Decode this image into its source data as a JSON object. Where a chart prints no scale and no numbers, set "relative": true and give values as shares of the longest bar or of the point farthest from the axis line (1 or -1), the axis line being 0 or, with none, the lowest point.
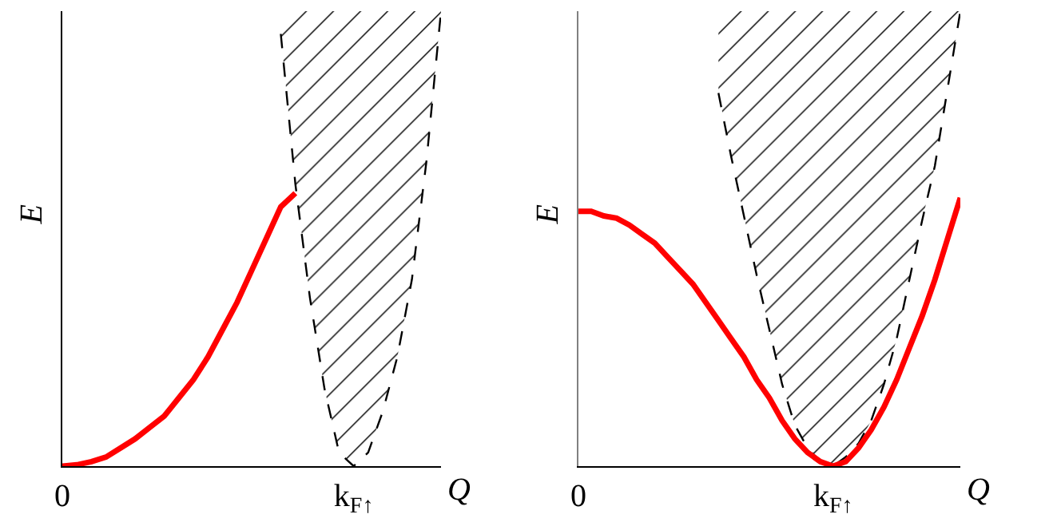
{
  "chart_data": [
    {
      "type": "line",
      "xlabel": "Q",
      "ylabel": "E",
      "relative": true,
      "grid": false,
      "marker": "none",
      "categories": [
        "0",
        null,
        null,
        null,
        null,
        null,
        null,
        null,
        null,
        null,
        null,
        null,
        null,
        null,
        null,
        null,
        null,
        null,
        null,
        null,
        "k$_{F↑}$",
        null,
        null,
        null,
        null,
        null,
        null
      ],
      "series": [
        {
          "type": "line",
          "color": "#000000",
          "line_style": "dashed",
          "values": [
            null,
            null,
            null,
            null,
            null,
            null,
            null,
            null,
            null,
            null,
            null,
            null,
            null,
            null,
            null,
            0.95,
            0.62,
            0.37,
            0.17,
            0.03,
            0,
            0.03,
            0.12,
            0.24,
            0.41,
            0.67,
            1
          ],
          "lower": [
            null,
            null,
            null,
            null,
            null,
            null,
            null,
            null,
            null,
            null,
            null,
            null,
            null,
            null,
            null,
            0.95,
            0.62,
            0.37,
            0.17,
            0.03,
            0,
            0.03,
            0.12,
            0.24,
            0.41,
            0.67,
            1
          ],
          "upper": [
            null,
            null,
            null,
            null,
            null,
            null,
            null,
            null,
            null,
            null,
            null,
            null,
            null,
            null,
            null,
            1,
            1,
            1,
            1,
            1,
            1,
            1,
            1,
            1,
            1,
            1,
            1
          ]
        },
        {
          "type": "line",
          "color": "#ff0000",
          "line_style": "solid",
          "values": [
            0,
            0.003,
            0.01,
            0.02,
            0.04,
            0.06,
            0.085,
            0.11,
            0.15,
            0.19,
            0.24,
            0.3,
            0.36,
            0.43,
            0.5,
            0.57,
            0.6,
            null,
            null,
            null,
            null,
            null,
            null,
            null,
            null,
            null,
            null
          ]
        }
      ]
    },
    {
      "type": "line",
      "xlabel": "Q",
      "ylabel": "E",
      "relative": true,
      "grid": false,
      "marker": "none",
      "categories": [
        "0",
        null,
        null,
        null,
        null,
        null,
        null,
        null,
        null,
        null,
        null,
        null,
        null,
        null,
        null,
        null,
        null,
        null,
        null,
        null,
        "k$_{F↑}$",
        null,
        null,
        null,
        null,
        null,
        null,
        null,
        null,
        null,
        null
      ],
      "series": [
        {
          "type": "line",
          "color": "#000000",
          "line_style": "dashed",
          "values": [
            null,
            null,
            null,
            null,
            null,
            null,
            null,
            null,
            null,
            null,
            null,
            0.82,
            0.68,
            0.55,
            0.42,
            0.3,
            0.18,
            0.09,
            0.04,
            0.01,
            0,
            0.02,
            0.05,
            0.1,
            0.18,
            0.28,
            0.41,
            0.54,
            0.66,
            0.83,
            1
          ],
          "lower": [
            null,
            null,
            null,
            null,
            null,
            null,
            null,
            null,
            null,
            null,
            null,
            0.82,
            0.68,
            0.55,
            0.42,
            0.3,
            0.18,
            0.09,
            0.04,
            0.01,
            0,
            0.02,
            0.05,
            0.1,
            0.18,
            0.28,
            0.41,
            0.54,
            0.66,
            0.83,
            1
          ],
          "upper": [
            null,
            null,
            null,
            null,
            null,
            null,
            null,
            null,
            null,
            null,
            null,
            1,
            1,
            1,
            1,
            1,
            1,
            1,
            1,
            1,
            1,
            1,
            1,
            1,
            1,
            1,
            1,
            1,
            1,
            1,
            1
          ]
        },
        {
          "type": "line",
          "color": "#ff0000",
          "line_style": "solid",
          "values": [
            0.56,
            0.56,
            0.55,
            0.545,
            0.53,
            0.51,
            0.49,
            0.46,
            0.43,
            0.4,
            0.36,
            0.32,
            0.28,
            0.24,
            0.19,
            0.15,
            0.1,
            0.06,
            0.03,
            0.01,
            0,
            0.01,
            0.04,
            0.08,
            0.13,
            0.19,
            0.26,
            0.33,
            0.41,
            0.5,
            0.59
          ]
        }
      ]
    }
  ]
}
